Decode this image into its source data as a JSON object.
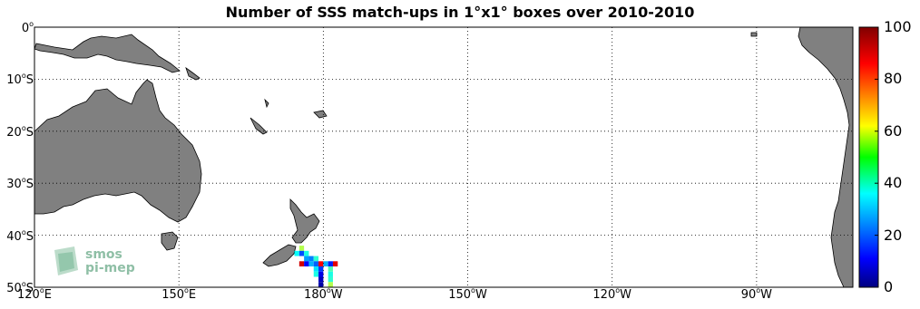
{
  "title": "Number of SSS match-ups in 1°x1° boxes over 2010-2010",
  "map": {
    "extent": {
      "lon_min": 120,
      "lon_max": 290,
      "lat_min": -50,
      "lat_max": 0
    },
    "lat_ticks": [
      {
        "value": 0,
        "num": "0",
        "hemi": ""
      },
      {
        "value": -10,
        "num": "10",
        "hemi": "S"
      },
      {
        "value": -20,
        "num": "20",
        "hemi": "S"
      },
      {
        "value": -30,
        "num": "30",
        "hemi": "S"
      },
      {
        "value": -40,
        "num": "40",
        "hemi": "S"
      },
      {
        "value": -50,
        "num": "50",
        "hemi": "S"
      }
    ],
    "lon_ticks": [
      {
        "value": 120,
        "num": "120",
        "hemi": "E"
      },
      {
        "value": 150,
        "num": "150",
        "hemi": "E"
      },
      {
        "value": 180,
        "num": "180",
        "hemi": "W"
      },
      {
        "value": 210,
        "num": "150",
        "hemi": "W"
      },
      {
        "value": 240,
        "num": "120",
        "hemi": "W"
      },
      {
        "value": 270,
        "num": "90",
        "hemi": "W"
      }
    ],
    "land_color": "#808080",
    "grid_style": "dotted"
  },
  "colorbar": {
    "min": 0,
    "max": 100,
    "ticks": [
      "0",
      "20",
      "40",
      "60",
      "80",
      "100"
    ],
    "colormap": "jet"
  },
  "logo": {
    "line1": "smos",
    "line2": "pi-mep"
  },
  "chart_data": {
    "type": "heatmap",
    "title": "Number of SSS match-ups in 1°x1° boxes over 2010-2010",
    "xlabel": "",
    "ylabel": "",
    "xlim": [
      120,
      290
    ],
    "ylim": [
      -50,
      0
    ],
    "grid": true,
    "colorbar_range": [
      0,
      100
    ],
    "cell_size_deg": 1,
    "cells": [
      {
        "lon": 174,
        "lat": -43,
        "value": 38
      },
      {
        "lon": 175,
        "lat": -42,
        "value": 55
      },
      {
        "lon": 175,
        "lat": -43,
        "value": 20
      },
      {
        "lon": 175,
        "lat": -45,
        "value": 92
      },
      {
        "lon": 176,
        "lat": -43,
        "value": 40
      },
      {
        "lon": 176,
        "lat": -44,
        "value": 28
      },
      {
        "lon": 176,
        "lat": -45,
        "value": 12
      },
      {
        "lon": 177,
        "lat": -44,
        "value": 25
      },
      {
        "lon": 177,
        "lat": -45,
        "value": 30
      },
      {
        "lon": 178,
        "lat": -44,
        "value": 42
      },
      {
        "lon": 178,
        "lat": -45,
        "value": 22
      },
      {
        "lon": 178,
        "lat": -46,
        "value": 35
      },
      {
        "lon": 178,
        "lat": -47,
        "value": 40
      },
      {
        "lon": 179,
        "lat": -45,
        "value": 88
      },
      {
        "lon": 179,
        "lat": -46,
        "value": 18
      },
      {
        "lon": 179,
        "lat": -47,
        "value": 10
      },
      {
        "lon": 179,
        "lat": -48,
        "value": 6
      },
      {
        "lon": 179,
        "lat": -49,
        "value": 4
      },
      {
        "lon": 180,
        "lat": -45,
        "value": 30
      },
      {
        "lon": 181,
        "lat": -45,
        "value": 15
      },
      {
        "lon": 181,
        "lat": -46,
        "value": 45
      },
      {
        "lon": 181,
        "lat": -47,
        "value": 40
      },
      {
        "lon": 181,
        "lat": -48,
        "value": 42
      },
      {
        "lon": 181,
        "lat": -49,
        "value": 55
      },
      {
        "lon": 182,
        "lat": -45,
        "value": 90
      }
    ]
  }
}
